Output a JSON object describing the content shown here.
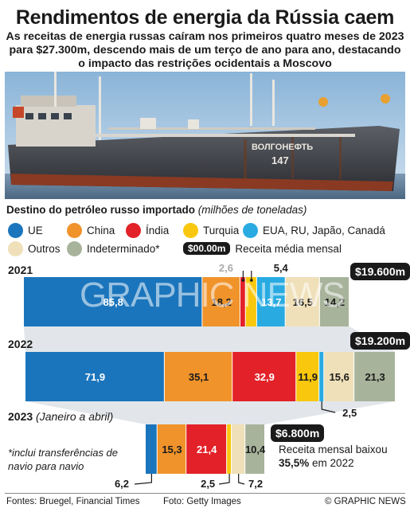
{
  "header": {
    "title": "Rendimentos de energia da Rússia caem",
    "subtitle": "As receitas de energia russas caíram nos primeiros quatro meses de 2023 para $27.300m, descendo mais de um terço de ano para ano, destacando o impacto das restrições ocidentais a Moscovo"
  },
  "photo": {
    "ship_name": "ВОЛГОНЕФТЬ",
    "ship_number": "147"
  },
  "section": {
    "label": "Destino do petróleo russo importado",
    "unit": "(milhões de toneladas)"
  },
  "legend": {
    "items": [
      {
        "label": "UE",
        "color": "#1b75bc"
      },
      {
        "label": "China",
        "color": "#f0932b"
      },
      {
        "label": "Índia",
        "color": "#e32128"
      },
      {
        "label": "Turquia",
        "color": "#f9c80e"
      },
      {
        "label": "EUA, RU, Japão, Canadá",
        "color": "#29abe2"
      },
      {
        "label": "Outros",
        "color": "#efe0b9"
      },
      {
        "label": "Indeterminado*",
        "color": "#a7b39b"
      }
    ],
    "revenue_sample": "$00.00m",
    "revenue_label": "Receita média mensal"
  },
  "chart_data": {
    "type": "bar",
    "orientation": "horizontal-stacked",
    "categories": [
      "2021",
      "2022",
      "2023 (Janeiro a abril)"
    ],
    "series": [
      {
        "name": "UE",
        "color": "#1b75bc",
        "values": [
          85.8,
          71.9,
          6.2
        ]
      },
      {
        "name": "China",
        "color": "#f0932b",
        "values": [
          18.2,
          35.1,
          15.3
        ]
      },
      {
        "name": "Índia",
        "color": "#e32128",
        "values": [
          2.6,
          32.9,
          21.4
        ]
      },
      {
        "name": "Turquia",
        "color": "#f9c80e",
        "values": [
          5.4,
          11.9,
          2.5
        ]
      },
      {
        "name": "EUA, RU, Japão, Canadá",
        "color": "#29abe2",
        "values": [
          13.7,
          2.5,
          0
        ]
      },
      {
        "name": "Outros",
        "color": "#efe0b9",
        "values": [
          16.5,
          15.6,
          7.2
        ]
      },
      {
        "name": "Indeterminado*",
        "color": "#a7b39b",
        "values": [
          14.2,
          21.3,
          10.4
        ]
      }
    ],
    "value_labels": [
      [
        "85,8",
        "18,2",
        "2,6",
        "5,4",
        "13,7",
        "16,5",
        "14,2"
      ],
      [
        "71,9",
        "35,1",
        "32,9",
        "11,9",
        "2,5",
        "15,6",
        "21,3"
      ],
      [
        "6,2",
        "15,3",
        "21,4",
        "2,5",
        "",
        "7,2",
        "10,4"
      ]
    ],
    "revenue": [
      "$19.600m",
      "$19.200m",
      "$6.800m"
    ]
  },
  "years": {
    "y2021": "2021",
    "y2022": "2022",
    "y2023": "2023",
    "y2023_note": "(Janeiro a abril)"
  },
  "notes": {
    "footnote": "*inclui transferências de navio para navio",
    "summary_a": "Receita mensal baixou",
    "summary_b": "35,5%",
    "summary_c": "em 2022"
  },
  "footer": {
    "sources": "Fontes: Bruegel, Financial Times",
    "photo": "Foto: Getty Images",
    "credit": "© GRAPHIC NEWS"
  },
  "watermark": "GRAPHIC NEWS"
}
